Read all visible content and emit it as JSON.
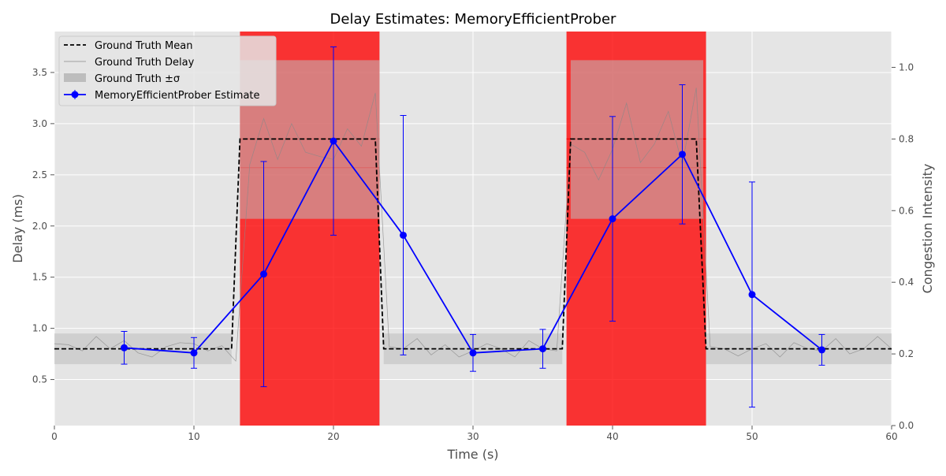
{
  "chart_data": {
    "type": "line",
    "title": "Delay Estimates: MemoryEfficientProber",
    "xlabel": "Time (s)",
    "ylabel": "Delay (ms)",
    "y2label": "Congestion Intensity",
    "xlim": [
      0,
      60
    ],
    "ylim": [
      0.05,
      3.9
    ],
    "y2lim": [
      0.0,
      1.1
    ],
    "xticks": [
      0,
      10,
      20,
      30,
      40,
      50,
      60
    ],
    "yticks": [
      0.5,
      1.0,
      1.5,
      2.0,
      2.5,
      3.0,
      3.5
    ],
    "y2ticks": [
      0.0,
      0.2,
      0.4,
      0.6,
      0.8,
      1.0
    ],
    "grid": true,
    "legend_position": "top-left",
    "legend": [
      "Ground Truth Mean",
      "Ground Truth Delay",
      "Ground Truth ±σ",
      "MemoryEfficientProber Estimate"
    ],
    "colors": {
      "background": "#e5e5e5",
      "grid": "#ffffff",
      "mean": "#000000",
      "delay": "#888888",
      "sigma": "#bdbdbd",
      "estimate": "#0000ff",
      "congestion": "#ff0000"
    },
    "congestion_periods": [
      {
        "start": 13.3,
        "end": 23.3,
        "intensity_levels": [
          0.8,
          0.72
        ]
      },
      {
        "start": 36.7,
        "end": 46.7,
        "intensity_levels": [
          0.8,
          0.72
        ]
      }
    ],
    "ground_truth_mean": {
      "x": [
        0,
        12.7,
        13.3,
        23.0,
        23.6,
        36.4,
        37.0,
        46.0,
        46.7,
        60
      ],
      "y": [
        0.8,
        0.8,
        2.85,
        2.85,
        0.8,
        0.8,
        2.85,
        2.85,
        0.8,
        0.8
      ]
    },
    "ground_truth_sigma": [
      {
        "start": 0,
        "end": 12.7,
        "low": 0.65,
        "high": 0.95
      },
      {
        "start": 13.3,
        "end": 23.3,
        "low": 2.07,
        "high": 3.62
      },
      {
        "start": 23.6,
        "end": 36.4,
        "low": 0.65,
        "high": 0.95
      },
      {
        "start": 37.0,
        "end": 46.5,
        "low": 2.07,
        "high": 3.62
      },
      {
        "start": 46.7,
        "end": 60,
        "low": 0.65,
        "high": 0.95
      }
    ],
    "ground_truth_delay": {
      "x": [
        0,
        1,
        2,
        3,
        4,
        5,
        6,
        7,
        8,
        9,
        10,
        11,
        12,
        13,
        14,
        15,
        16,
        17,
        18,
        19,
        20,
        21,
        22,
        23,
        24,
        25,
        26,
        27,
        28,
        29,
        30,
        31,
        32,
        33,
        34,
        35,
        36,
        37,
        38,
        39,
        40,
        41,
        42,
        43,
        44,
        45,
        46,
        47,
        48,
        49,
        50,
        51,
        52,
        53,
        54,
        55,
        56,
        57,
        58,
        59,
        60
      ],
      "y": [
        0.85,
        0.84,
        0.78,
        0.92,
        0.8,
        0.88,
        0.76,
        0.72,
        0.82,
        0.86,
        0.85,
        0.78,
        0.83,
        0.68,
        2.6,
        3.05,
        2.65,
        3.0,
        2.72,
        2.68,
        2.65,
        2.95,
        2.78,
        3.3,
        0.82,
        0.8,
        0.9,
        0.74,
        0.84,
        0.72,
        0.78,
        0.85,
        0.8,
        0.72,
        0.88,
        0.8,
        0.78,
        2.8,
        2.72,
        2.45,
        2.75,
        3.2,
        2.62,
        2.8,
        3.12,
        2.6,
        3.35,
        0.82,
        0.8,
        0.73,
        0.8,
        0.85,
        0.72,
        0.86,
        0.8,
        0.78,
        0.9,
        0.75,
        0.8,
        0.92,
        0.8
      ]
    },
    "estimate": {
      "name": "MemoryEfficientProber Estimate",
      "x": [
        5,
        10,
        15,
        20,
        25,
        30,
        35,
        40,
        45,
        50,
        55
      ],
      "y": [
        0.81,
        0.76,
        1.53,
        2.83,
        1.91,
        0.76,
        0.8,
        2.07,
        2.7,
        1.33,
        0.79
      ],
      "err": [
        0.16,
        0.15,
        1.1,
        0.92,
        1.17,
        0.18,
        0.19,
        1.0,
        0.68,
        1.1,
        0.15
      ]
    }
  }
}
